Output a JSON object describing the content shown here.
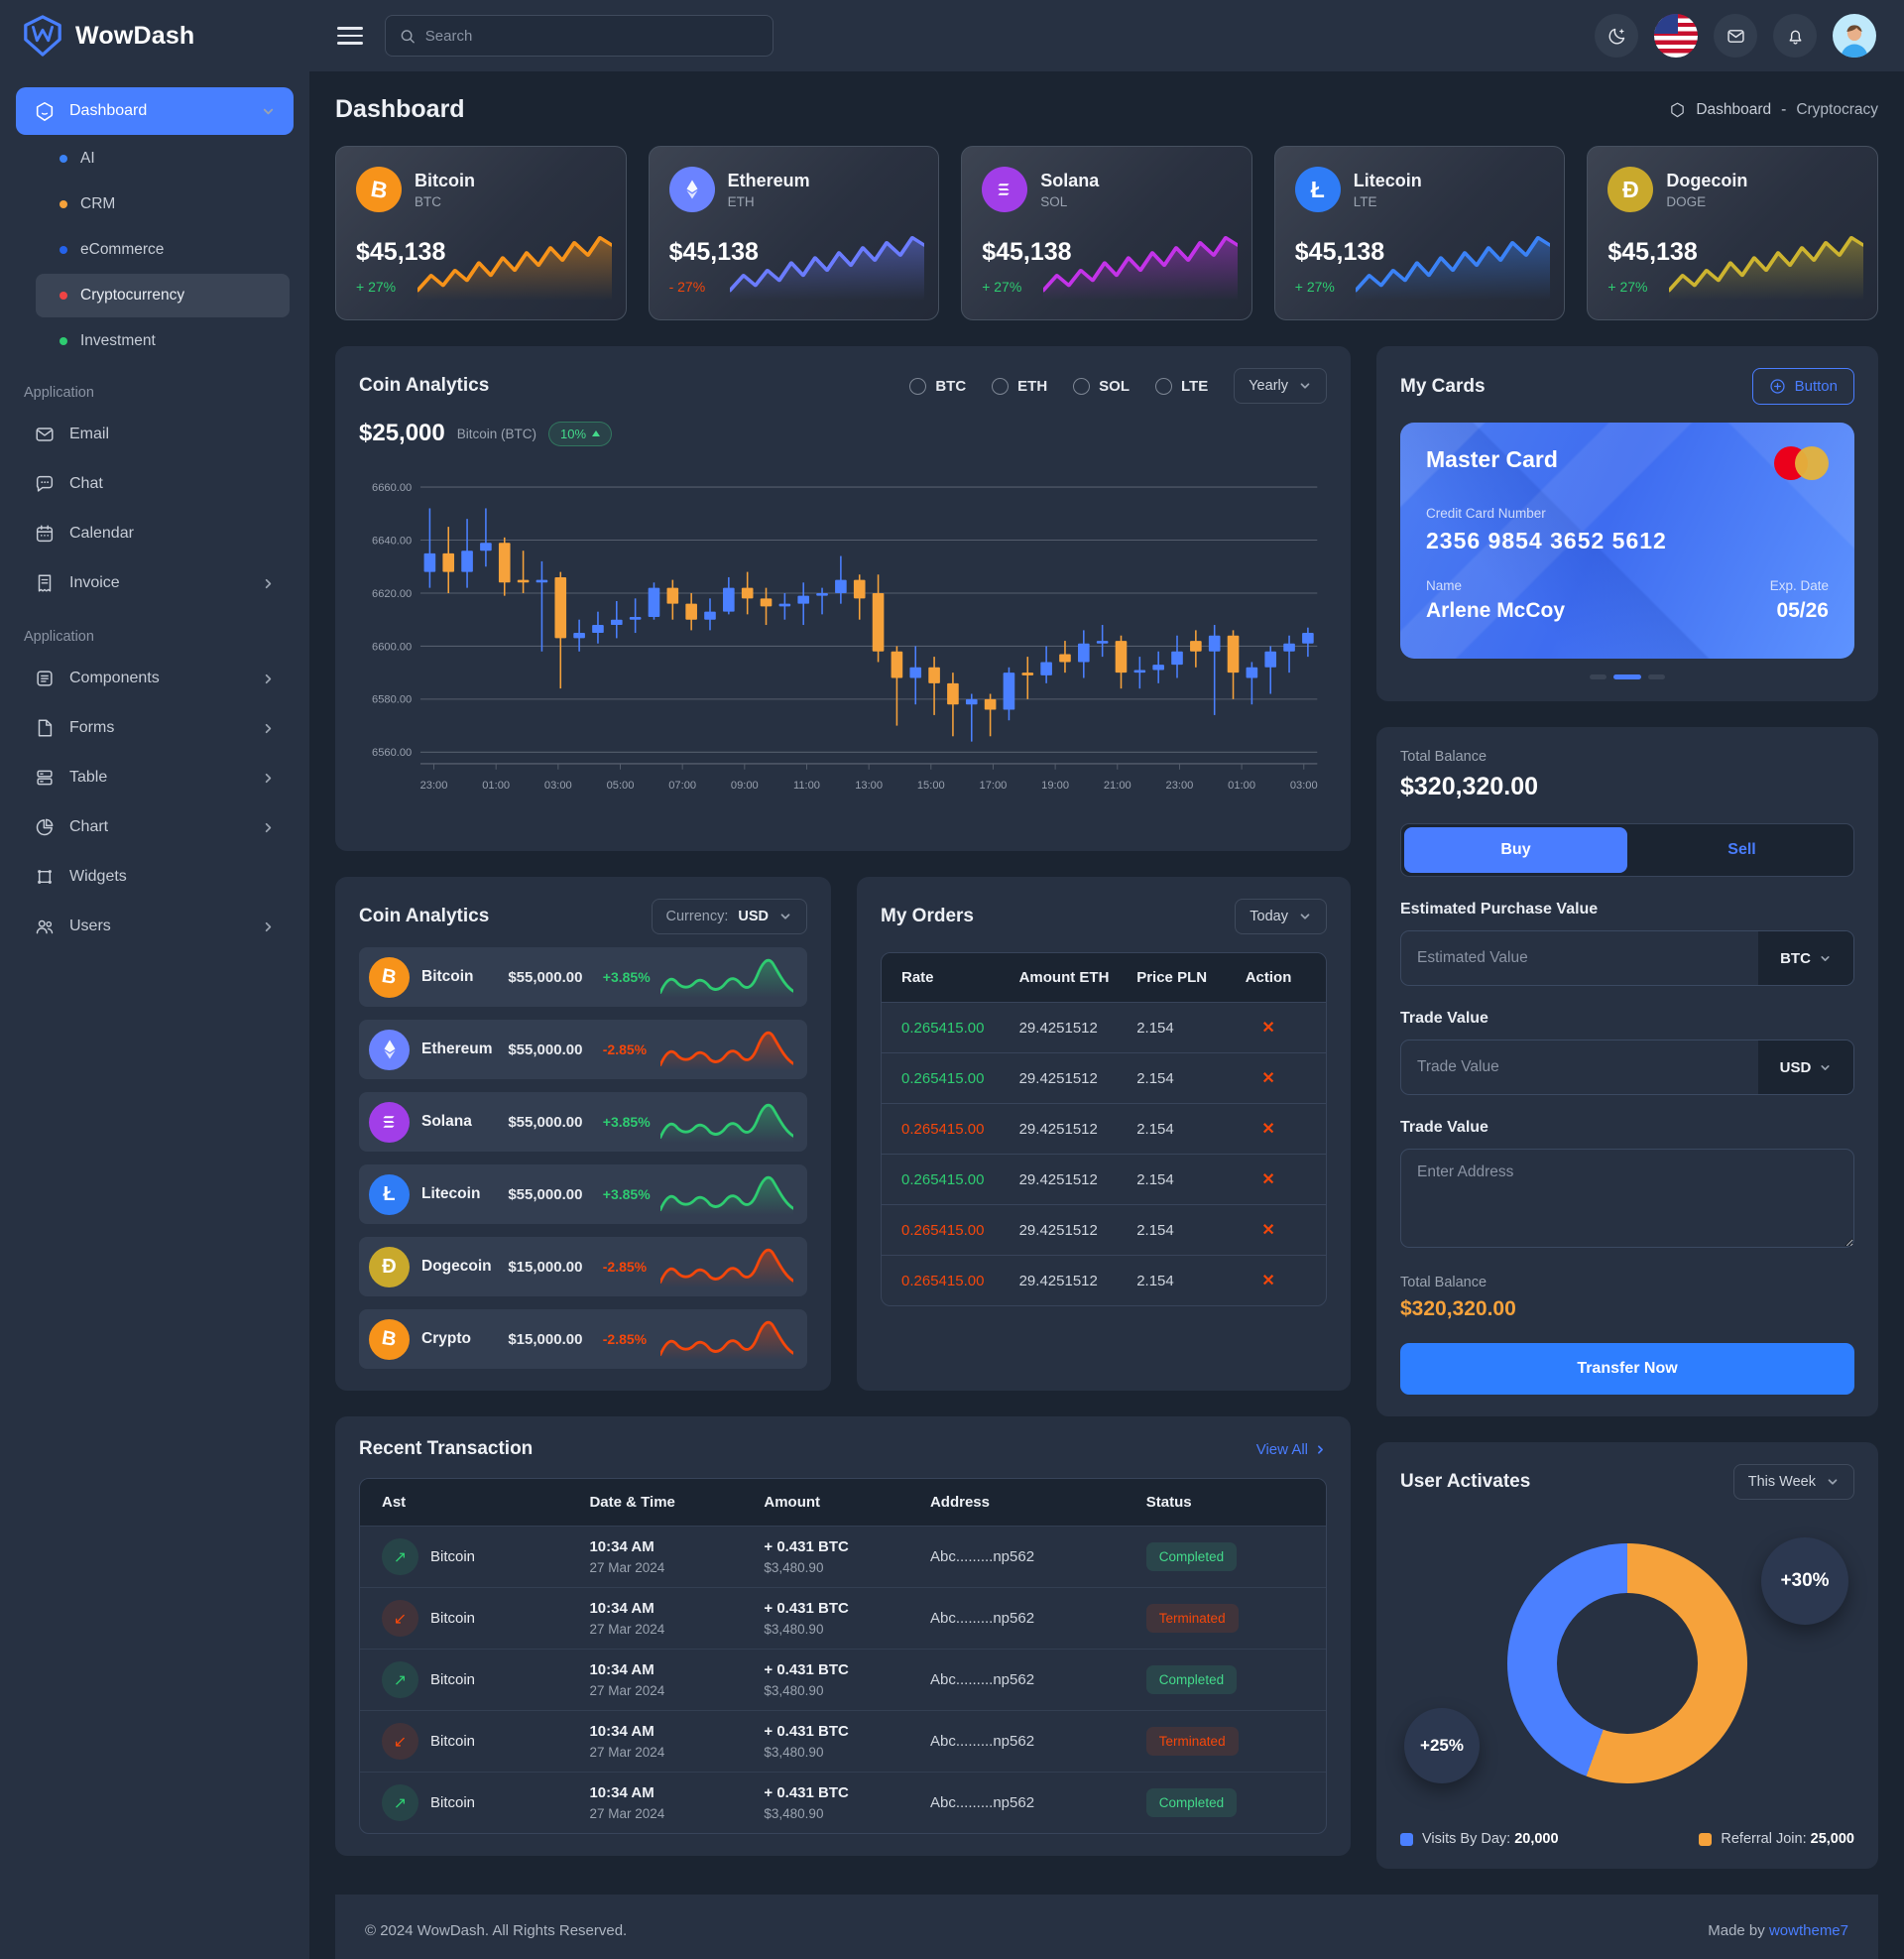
{
  "brand": {
    "name": "WowDash"
  },
  "colors": {
    "accent": "#487fff",
    "green": "#2ecc71",
    "red": "#f4470b",
    "orange": "#f6a23b",
    "candle_up": "#4b80ff",
    "candle_down": "#f6a23b",
    "donut_blue": "#4b80ff",
    "donut_orange": "#f6a23b"
  },
  "topbar": {
    "search_placeholder": "Search",
    "icons": [
      "dark-mode-toggle",
      "language-flag",
      "messages",
      "notifications",
      "profile"
    ]
  },
  "sidebar": {
    "dashboard": {
      "label": "Dashboard",
      "children": [
        {
          "label": "AI",
          "dot": "#3b82f6",
          "active": false
        },
        {
          "label": "CRM",
          "dot": "#f6a23b",
          "active": false
        },
        {
          "label": "eCommerce",
          "dot": "#2563eb",
          "active": false
        },
        {
          "label": "Cryptocurrency",
          "dot": "#ef4444",
          "active": true
        },
        {
          "label": "Investment",
          "dot": "#2ecc71",
          "active": false
        }
      ]
    },
    "sections": [
      {
        "label": "Application",
        "items": [
          {
            "label": "Email",
            "icon": "email-icon",
            "chevron": false
          },
          {
            "label": "Chat",
            "icon": "chat-icon",
            "chevron": false
          },
          {
            "label": "Calendar",
            "icon": "calendar-icon",
            "chevron": false
          },
          {
            "label": "Invoice",
            "icon": "invoice-icon",
            "chevron": true
          }
        ]
      },
      {
        "label": "Application",
        "items": [
          {
            "label": "Components",
            "icon": "components-icon",
            "chevron": true
          },
          {
            "label": "Forms",
            "icon": "forms-icon",
            "chevron": true
          },
          {
            "label": "Table",
            "icon": "table-icon",
            "chevron": true
          },
          {
            "label": "Chart",
            "icon": "chart-icon",
            "chevron": true
          },
          {
            "label": "Widgets",
            "icon": "widgets-icon",
            "chevron": false
          },
          {
            "label": "Users",
            "icon": "users-icon",
            "chevron": true
          }
        ]
      }
    ]
  },
  "page": {
    "title": "Dashboard",
    "breadcrumb": {
      "home": "Dashboard",
      "sep": "-",
      "current": "Cryptocracy"
    }
  },
  "crypto_cards": [
    {
      "name": "Bitcoin",
      "symbol": "BTC",
      "price": "$45,138",
      "change": "+ 27%",
      "direction": "up",
      "icon": "bitcoin-icon",
      "icon_bg": "#f7931a",
      "spark_color": "#f7931a"
    },
    {
      "name": "Ethereum",
      "symbol": "ETH",
      "price": "$45,138",
      "change": "- 27%",
      "direction": "down",
      "icon": "ethereum-icon",
      "icon_bg": "#6b83ff",
      "spark_color": "#6b7cff"
    },
    {
      "name": "Solana",
      "symbol": "SOL",
      "price": "$45,138",
      "change": "+ 27%",
      "direction": "up",
      "icon": "solana-icon",
      "icon_bg": "#a13ee8",
      "spark_color": "#c333e8"
    },
    {
      "name": "Litecoin",
      "symbol": "LTE",
      "price": "$45,138",
      "change": "+ 27%",
      "direction": "up",
      "icon": "litecoin-icon",
      "icon_bg": "#2f7cf6",
      "spark_color": "#3b82f6"
    },
    {
      "name": "Dogecoin",
      "symbol": "DOGE",
      "price": "$45,138",
      "change": "+ 27%",
      "direction": "up",
      "icon": "dogecoin-icon",
      "icon_bg": "#c9a92c",
      "spark_color": "#cdb430"
    }
  ],
  "coin_chart": {
    "title": "Coin Analytics",
    "radios": [
      "BTC",
      "ETH",
      "SOL",
      "LTE"
    ],
    "period": "Yearly",
    "price": "$25,000",
    "coin_label": "Bitcoin (BTC)",
    "badge": "10%",
    "chart_data": {
      "type": "candlestick",
      "ylim": [
        6560,
        6660
      ],
      "y_ticks": [
        "6660.00",
        "6640.00",
        "6620.00",
        "6600.00",
        "6580.00",
        "6560.00"
      ],
      "x_ticks": [
        "23:00",
        "01:00",
        "03:00",
        "05:00",
        "07:00",
        "09:00",
        "11:00",
        "13:00",
        "15:00",
        "17:00",
        "19:00",
        "21:00",
        "23:00",
        "01:00",
        "03:00"
      ],
      "up_color": "#4b80ff",
      "down_color": "#f6a23b",
      "candles": [
        [
          6628,
          6652,
          6622,
          6635
        ],
        [
          6635,
          6645,
          6620,
          6628
        ],
        [
          6628,
          6648,
          6622,
          6636
        ],
        [
          6636,
          6652,
          6630,
          6639
        ],
        [
          6639,
          6641,
          6619,
          6624
        ],
        [
          6625,
          6636,
          6620,
          6624
        ],
        [
          6624,
          6632,
          6598,
          6625
        ],
        [
          6626,
          6628,
          6584,
          6603
        ],
        [
          6603,
          6610,
          6598,
          6605
        ],
        [
          6605,
          6613,
          6601,
          6608
        ],
        [
          6608,
          6617,
          6603,
          6610
        ],
        [
          6610,
          6618,
          6605,
          6611
        ],
        [
          6611,
          6624,
          6610,
          6622
        ],
        [
          6622,
          6625,
          6610,
          6616
        ],
        [
          6616,
          6620,
          6606,
          6610
        ],
        [
          6610,
          6618,
          6606,
          6613
        ],
        [
          6613,
          6626,
          6612,
          6622
        ],
        [
          6622,
          6628,
          6612,
          6618
        ],
        [
          6618,
          6622,
          6608,
          6615
        ],
        [
          6615,
          6620,
          6610,
          6616
        ],
        [
          6616,
          6624,
          6608,
          6619
        ],
        [
          6619,
          6622,
          6612,
          6620
        ],
        [
          6620,
          6634,
          6616,
          6625
        ],
        [
          6625,
          6627,
          6610,
          6618
        ],
        [
          6620,
          6627,
          6594,
          6598
        ],
        [
          6598,
          6600,
          6570,
          6588
        ],
        [
          6588,
          6600,
          6578,
          6592
        ],
        [
          6592,
          6596,
          6574,
          6586
        ],
        [
          6586,
          6590,
          6566,
          6578
        ],
        [
          6578,
          6582,
          6564,
          6580
        ],
        [
          6580,
          6582,
          6566,
          6576
        ],
        [
          6576,
          6592,
          6572,
          6590
        ],
        [
          6590,
          6596,
          6580,
          6589
        ],
        [
          6589,
          6600,
          6586,
          6594
        ],
        [
          6597,
          6602,
          6590,
          6594
        ],
        [
          6594,
          6606,
          6588,
          6601
        ],
        [
          6601,
          6608,
          6596,
          6602
        ],
        [
          6602,
          6604,
          6584,
          6590
        ],
        [
          6590,
          6596,
          6584,
          6591
        ],
        [
          6591,
          6598,
          6586,
          6593
        ],
        [
          6593,
          6604,
          6588,
          6598
        ],
        [
          6602,
          6606,
          6592,
          6598
        ],
        [
          6598,
          6608,
          6574,
          6604
        ],
        [
          6604,
          6606,
          6580,
          6590
        ],
        [
          6588,
          6594,
          6578,
          6592
        ],
        [
          6592,
          6600,
          6582,
          6598
        ],
        [
          6598,
          6604,
          6590,
          6601
        ],
        [
          6601,
          6607,
          6596,
          6605
        ]
      ]
    }
  },
  "my_cards": {
    "title": "My Cards",
    "button_label": "Button",
    "card": {
      "type": "Master Card",
      "number_label": "Credit Card Number",
      "number": "2356 9854 3652 5612",
      "name_label": "Name",
      "name": "Arlene McCoy",
      "exp_label": "Exp. Date",
      "exp": "05/26"
    }
  },
  "trade_panel": {
    "total_balance_label": "Total Balance",
    "total_balance": "$320,320.00",
    "tabs": [
      {
        "label": "Buy",
        "active": true
      },
      {
        "label": "Sell",
        "active": false
      }
    ],
    "field1_label": "Estimated Purchase Value",
    "field1_placeholder": "Estimated Value",
    "field1_addon": "BTC",
    "field2_label": "Trade Value",
    "field2_placeholder": "Trade Value",
    "field2_addon": "USD",
    "field3_label": "Trade Value",
    "field3_placeholder": "Enter Address",
    "bottom_balance_label": "Total Balance",
    "bottom_balance": "$320,320.00",
    "submit_label": "Transfer Now"
  },
  "coin_list": {
    "title": "Coin Analytics",
    "currency_label": "Currency:",
    "currency": "USD",
    "rows": [
      {
        "name": "Bitcoin",
        "price": "$55,000.00",
        "change": "+3.85%",
        "direction": "up",
        "icon": "bitcoin-icon",
        "icon_bg": "#f7931a"
      },
      {
        "name": "Ethereum",
        "price": "$55,000.00",
        "change": "-2.85%",
        "direction": "down",
        "icon": "ethereum-icon",
        "icon_bg": "#6b83ff"
      },
      {
        "name": "Solana",
        "price": "$55,000.00",
        "change": "+3.85%",
        "direction": "up",
        "icon": "solana-icon",
        "icon_bg": "#a13ee8"
      },
      {
        "name": "Litecoin",
        "price": "$55,000.00",
        "change": "+3.85%",
        "direction": "up",
        "icon": "litecoin-icon",
        "icon_bg": "#2f7cf6"
      },
      {
        "name": "Dogecoin",
        "price": "$15,000.00",
        "change": "-2.85%",
        "direction": "down",
        "icon": "dogecoin-icon",
        "icon_bg": "#c9a92c"
      },
      {
        "name": "Crypto",
        "price": "$15,000.00",
        "change": "-2.85%",
        "direction": "down",
        "icon": "bitcoin-icon",
        "icon_bg": "#f7931a"
      }
    ],
    "spark_up_color": "#2ecc71",
    "spark_down_color": "#f4470b"
  },
  "orders": {
    "title": "My Orders",
    "period": "Today",
    "headers": [
      "Rate",
      "Amount ETH",
      "Price PLN",
      "Action"
    ],
    "rows": [
      {
        "rate": "0.265415.00",
        "amount": "29.4251512",
        "price": "2.154",
        "rate_color": "green"
      },
      {
        "rate": "0.265415.00",
        "amount": "29.4251512",
        "price": "2.154",
        "rate_color": "green"
      },
      {
        "rate": "0.265415.00",
        "amount": "29.4251512",
        "price": "2.154",
        "rate_color": "red"
      },
      {
        "rate": "0.265415.00",
        "amount": "29.4251512",
        "price": "2.154",
        "rate_color": "green"
      },
      {
        "rate": "0.265415.00",
        "amount": "29.4251512",
        "price": "2.154",
        "rate_color": "red"
      },
      {
        "rate": "0.265415.00",
        "amount": "29.4251512",
        "price": "2.154",
        "rate_color": "red"
      }
    ]
  },
  "transactions": {
    "title": "Recent Transaction",
    "view_all": "View All",
    "headers": [
      "Ast",
      "Date & Time",
      "Amount",
      "Address",
      "Status"
    ],
    "rows": [
      {
        "asset": "Bitcoin",
        "direction": "up",
        "time": "10:34 AM",
        "date": "27 Mar 2024",
        "amount": "+ 0.431 BTC",
        "amount_usd": "$3,480.90",
        "address": "Abc.........np562",
        "status": "Completed",
        "status_type": "ok"
      },
      {
        "asset": "Bitcoin",
        "direction": "down",
        "time": "10:34 AM",
        "date": "27 Mar 2024",
        "amount": "+ 0.431 BTC",
        "amount_usd": "$3,480.90",
        "address": "Abc.........np562",
        "status": "Terminated",
        "status_type": "bad"
      },
      {
        "asset": "Bitcoin",
        "direction": "up",
        "time": "10:34 AM",
        "date": "27 Mar 2024",
        "amount": "+ 0.431 BTC",
        "amount_usd": "$3,480.90",
        "address": "Abc.........np562",
        "status": "Completed",
        "status_type": "ok"
      },
      {
        "asset": "Bitcoin",
        "direction": "down",
        "time": "10:34 AM",
        "date": "27 Mar 2024",
        "amount": "+ 0.431 BTC",
        "amount_usd": "$3,480.90",
        "address": "Abc.........np562",
        "status": "Terminated",
        "status_type": "bad"
      },
      {
        "asset": "Bitcoin",
        "direction": "up",
        "time": "10:34 AM",
        "date": "27 Mar 2024",
        "amount": "+ 0.431 BTC",
        "amount_usd": "$3,480.90",
        "address": "Abc.........np562",
        "status": "Completed",
        "status_type": "ok"
      }
    ]
  },
  "user_activity": {
    "title": "User Activates",
    "period": "This Week",
    "bubble_top": "+30%",
    "bubble_bottom": "+25%",
    "chart_data": {
      "type": "pie",
      "donut": true,
      "segments": [
        {
          "label": "Referral Join",
          "value": 25000,
          "display": "25,000",
          "color": "#f6a23b",
          "start_deg": 0,
          "end_deg": 200
        },
        {
          "label": "Visits By Day",
          "value": 20000,
          "display": "20,000",
          "color": "#4b80ff",
          "start_deg": 200,
          "end_deg": 360
        }
      ],
      "legend_position": "bottom"
    },
    "legend": [
      {
        "label": "Visits By Day:",
        "value": "20,000",
        "color": "#4b80ff"
      },
      {
        "label": "Referral Join:",
        "value": "25,000",
        "color": "#f6a23b"
      }
    ]
  },
  "footer": {
    "copyright": "© 2024 WowDash. All Rights Reserved.",
    "made_by": "Made by",
    "author": "wowtheme7"
  }
}
